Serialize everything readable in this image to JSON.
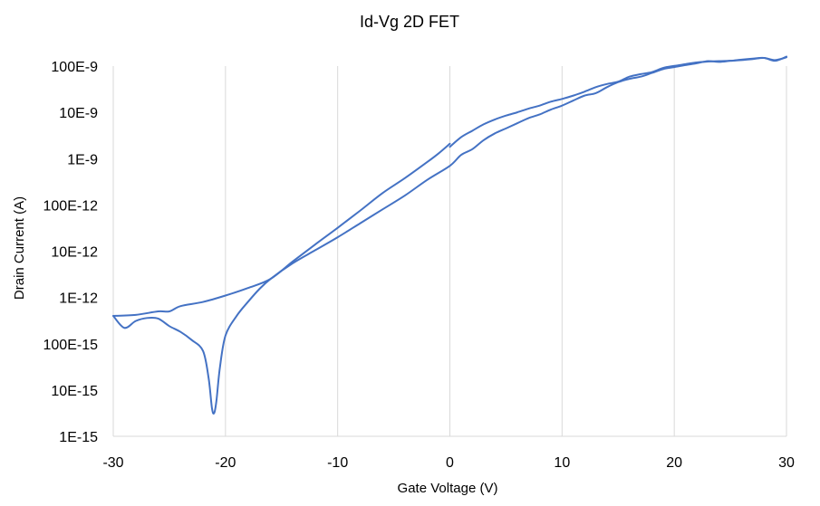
{
  "chart_data": {
    "type": "line",
    "title": "Id-Vg 2D FET",
    "xlabel": "Gate Voltage (V)",
    "ylabel": "Drain Current (A)",
    "xlim": [
      -30,
      30
    ],
    "ylim": [
      1e-15,
      1e-07
    ],
    "y_scale": "log",
    "grid": "vertical",
    "legend": "none",
    "x_ticks": [
      -30,
      -20,
      -10,
      0,
      10,
      20,
      30
    ],
    "x_tick_labels": [
      "-30",
      "-20",
      "-10",
      "0",
      "10",
      "20",
      "30"
    ],
    "y_ticks": [
      1e-15,
      1e-14,
      1e-13,
      1e-12,
      1e-11,
      1e-10,
      1e-09,
      1e-08,
      1e-07
    ],
    "y_tick_labels": [
      "1E-15",
      "10E-15",
      "100E-15",
      "1E-12",
      "10E-12",
      "100E-12",
      "1E-9",
      "10E-9",
      "100E-9"
    ],
    "line_color": "#4472C4",
    "series": [
      {
        "x": [
          -30,
          -29,
          -28,
          -27,
          -26,
          -25,
          -24,
          -23,
          -22,
          -21.5,
          -21.2,
          -21,
          -20.8,
          -20.5,
          -20,
          -19,
          -18,
          -17,
          -16,
          -14,
          -12,
          -10,
          -8,
          -6,
          -4,
          -2,
          0,
          1,
          2,
          3,
          4,
          5,
          6,
          7,
          8,
          9,
          10,
          11,
          12,
          13,
          14,
          15,
          16,
          17,
          18,
          19,
          20,
          21,
          22,
          23,
          24,
          25,
          26,
          27,
          28,
          29,
          30
        ],
        "y": [
          4e-13,
          2.2e-13,
          3.1e-13,
          3.6e-13,
          3.5e-13,
          2.4e-13,
          1.8e-13,
          1.2e-13,
          7e-14,
          1.8e-14,
          4e-15,
          3.2e-15,
          6e-15,
          3e-14,
          1.5e-13,
          4e-13,
          8e-13,
          1.5e-12,
          2.5e-12,
          5.5e-12,
          1.05e-11,
          2e-11,
          4e-11,
          8e-11,
          1.6e-10,
          3.5e-10,
          7e-10,
          1.2e-09,
          1.6e-09,
          2.5e-09,
          3.5e-09,
          4.5e-09,
          5.8e-09,
          7.5e-09,
          9e-09,
          1.15e-08,
          1.4e-08,
          1.8e-08,
          2.3e-08,
          2.6e-08,
          3.5e-08,
          4.5e-08,
          5.3e-08,
          5.9e-08,
          7.1e-08,
          8.6e-08,
          9.5e-08,
          1.05e-07,
          1.15e-07,
          1.28e-07,
          1.23e-07,
          1.3e-07,
          1.38e-07,
          1.45e-07,
          1.5e-07,
          1.3e-07,
          1.6e-07
        ]
      },
      {
        "x": [
          -30,
          -28,
          -26,
          -25,
          -24,
          -22,
          -20,
          -18,
          -16,
          -14,
          -12,
          -10,
          -8,
          -6,
          -4,
          -2,
          -1,
          0
        ],
        "y": [
          4e-13,
          4.2e-13,
          5e-13,
          5e-13,
          6.5e-13,
          8e-13,
          1.1e-12,
          1.6e-12,
          2.5e-12,
          6e-12,
          1.4e-11,
          3.2e-11,
          7.5e-11,
          1.8e-10,
          3.8e-10,
          8.5e-10,
          1.3e-09,
          2.1e-09
        ]
      },
      {
        "x": [
          0,
          1,
          2,
          3,
          4,
          5,
          6,
          7,
          8,
          9,
          10,
          11,
          12,
          13,
          14,
          15,
          16,
          17,
          18,
          19,
          20,
          21,
          22,
          23,
          24,
          25,
          26,
          27,
          28,
          29,
          30
        ],
        "y": [
          1.8e-09,
          2.9e-09,
          4e-09,
          5.5e-09,
          7e-09,
          8.5e-09,
          1e-08,
          1.2e-08,
          1.4e-08,
          1.7e-08,
          1.95e-08,
          2.3e-08,
          2.8e-08,
          3.5e-08,
          4.1e-08,
          4.6e-08,
          5.9e-08,
          6.7e-08,
          7.4e-08,
          9.1e-08,
          1.01e-07,
          1.1e-07,
          1.2e-07,
          1.25e-07,
          1.28e-07,
          1.3e-07,
          1.35e-07,
          1.42e-07,
          1.5e-07,
          1.35e-07,
          1.55e-07
        ]
      }
    ]
  }
}
